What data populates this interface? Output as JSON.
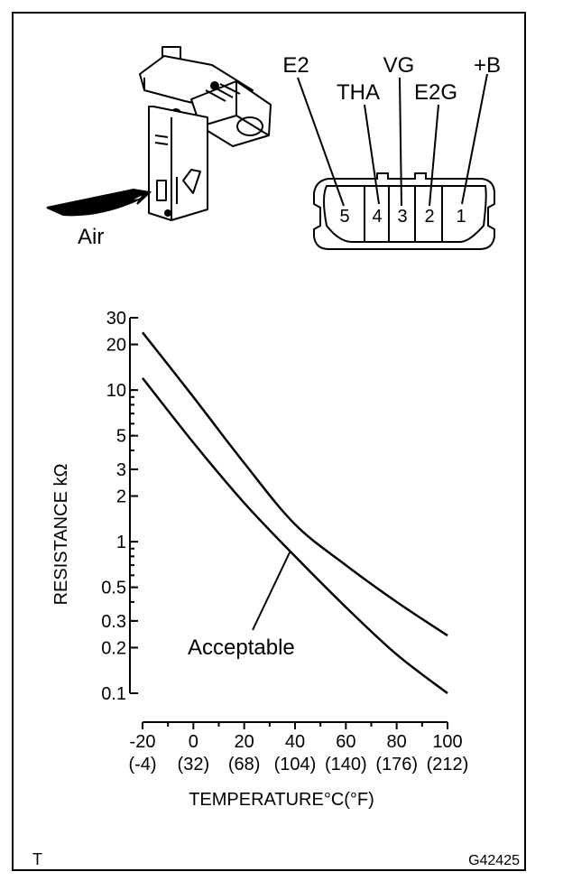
{
  "sensor": {
    "air_label": "Air"
  },
  "connector": {
    "terminal_names": [
      "E2",
      "THA",
      "VG",
      "E2G",
      "+B"
    ],
    "pin_numbers": [
      "5",
      "4",
      "3",
      "2",
      "1"
    ]
  },
  "chart_data": {
    "type": "line",
    "y_scale": "log",
    "ylabel": "RESISTANCE kΩ",
    "xlabel": "TEMPERATURE°C(°F)",
    "x_ticks_c": [
      "-20",
      "0",
      "20",
      "40",
      "60",
      "80",
      "100"
    ],
    "x_ticks_f": [
      "(-4)",
      "(32)",
      "(68)",
      "(104)",
      "(140)",
      "(176)",
      "(212)"
    ],
    "y_ticks": [
      "30",
      "20",
      "10",
      "5",
      "3",
      "2",
      "1",
      "0.5",
      "0.3",
      "0.2",
      "0.1"
    ],
    "y_tick_values": [
      30,
      20,
      10,
      5,
      3,
      2,
      1,
      0.5,
      0.3,
      0.2,
      0.1
    ],
    "xlim": [
      -20,
      100
    ],
    "ylim": [
      0.1,
      30
    ],
    "series": [
      {
        "x": [
          -20,
          0,
          20,
          40,
          60,
          80,
          100
        ],
        "y": [
          24,
          9,
          3.3,
          1.3,
          0.7,
          0.4,
          0.24
        ]
      },
      {
        "x": [
          -20,
          0,
          20,
          40,
          60,
          80,
          100
        ],
        "y": [
          12,
          4.5,
          1.8,
          0.8,
          0.37,
          0.18,
          0.1
        ]
      }
    ],
    "annotation": "Acceptable"
  },
  "footer": {
    "left_code": "T",
    "figure_id": "G42425"
  }
}
